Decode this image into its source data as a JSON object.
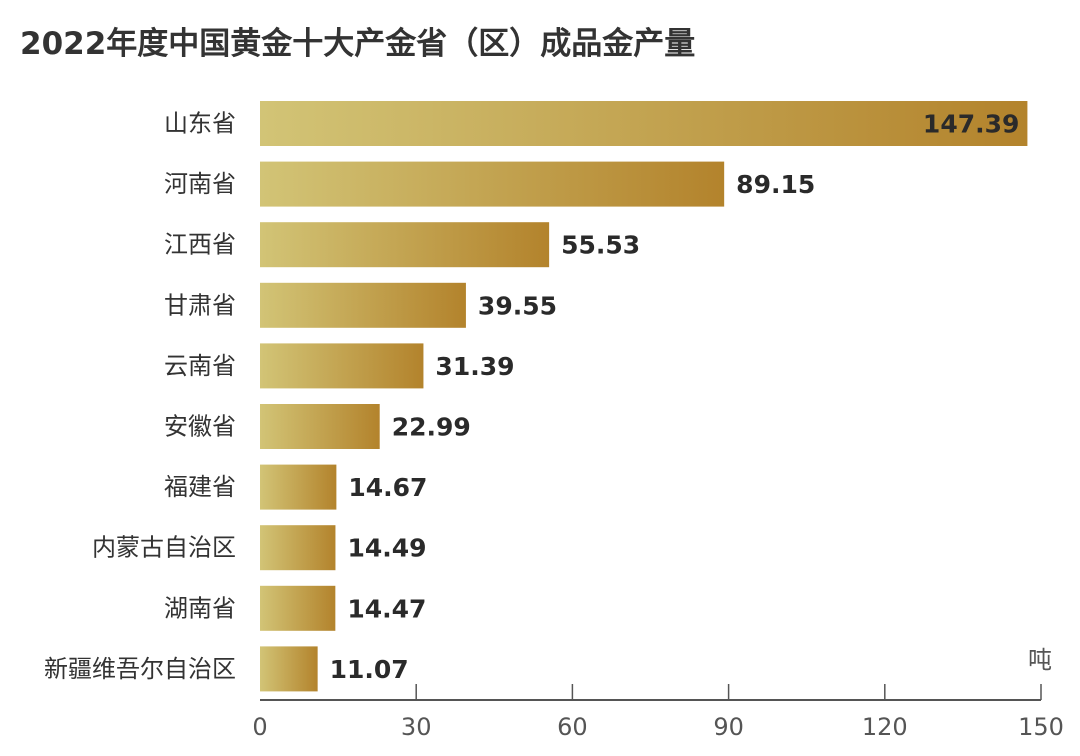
{
  "chart_data": {
    "type": "bar",
    "orientation": "horizontal",
    "title": "2022年度中国黄金十大产金省（区）成品金产量",
    "unit": "吨",
    "categories": [
      "山东省",
      "河南省",
      "江西省",
      "甘肃省",
      "云南省",
      "安徽省",
      "福建省",
      "内蒙古自治区",
      "湖南省",
      "新疆维吾尔自治区"
    ],
    "values": [
      147.39,
      89.15,
      55.53,
      39.55,
      31.39,
      22.99,
      14.67,
      14.49,
      14.47,
      11.07
    ],
    "value_labels": [
      "147.39",
      "89.15",
      "55.53",
      "39.55",
      "31.39",
      "22.99",
      "14.67",
      "14.49",
      "14.47",
      "11.07"
    ],
    "xlim": [
      0,
      150
    ],
    "xticks": [
      "0",
      "30",
      "60",
      "90",
      "120",
      "150"
    ],
    "grid": false,
    "colors": {
      "bar_start": "#d2c476",
      "bar_end": "#b3832c",
      "axis": "#555555"
    }
  }
}
